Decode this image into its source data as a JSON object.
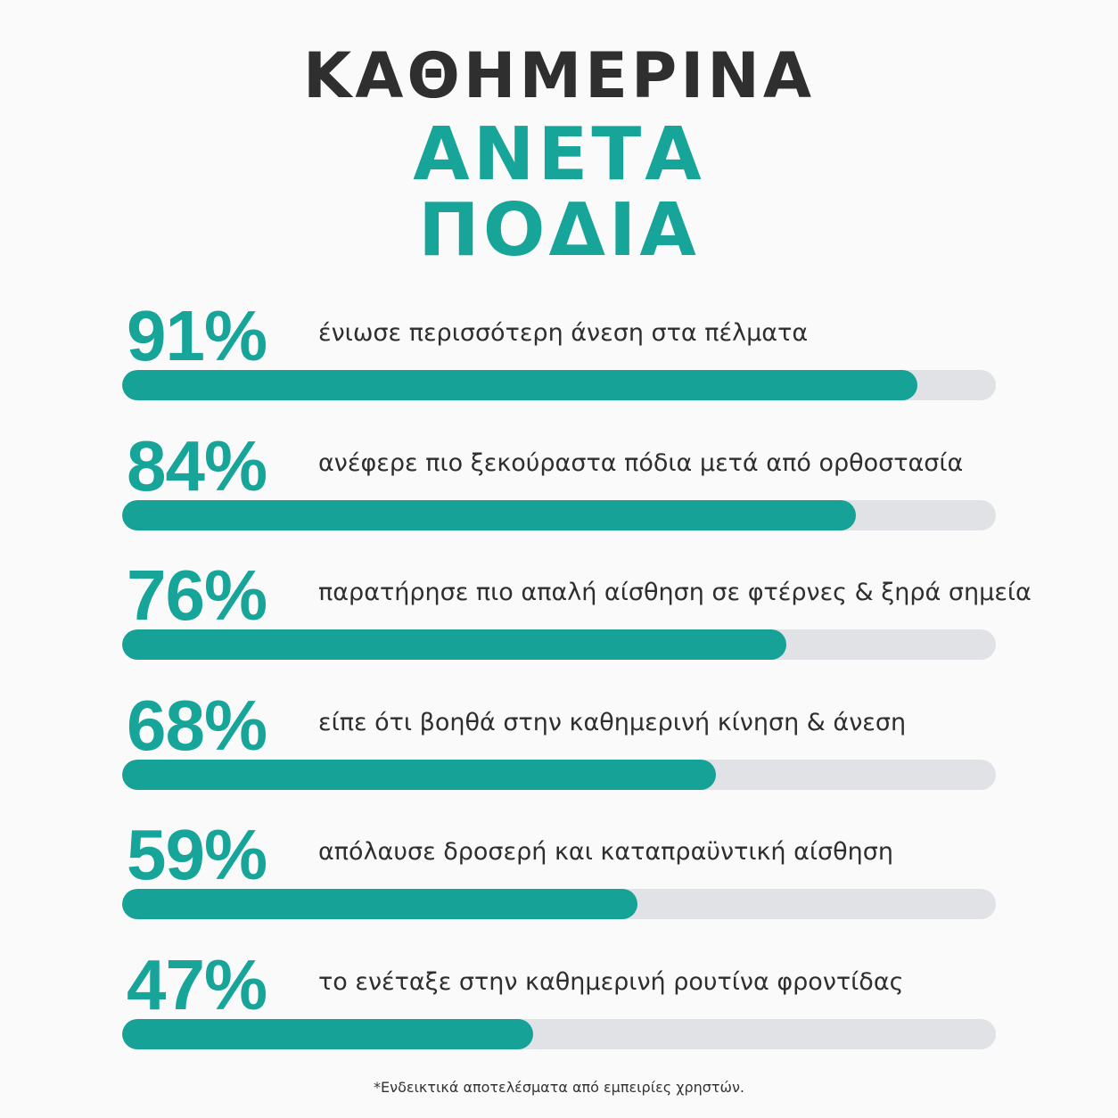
{
  "header": {
    "line1": "ΚΑΘΗΜΕΡΙΝΑ",
    "line2": "ΑΝΕΤΑ",
    "line3": "ΠΟΔΙΑ"
  },
  "colors": {
    "accent": "#17a59a",
    "title_dark": "#2f2f2f",
    "track": "#e1e2e5"
  },
  "chart_data": {
    "type": "bar",
    "orientation": "horizontal",
    "categories": [
      "ένιωσε περισσότερη άνεση στα πέλματα",
      "ανέφερε πιο ξεκούραστα πόδια μετά από ορθοστασία",
      "παρατήρησε πιο απαλή αίσθηση σε φτέρνες & ξηρά σημεία",
      "είπε ότι βοηθά στην καθημερινή κίνηση & άνεση",
      "απόλαυσε δροσερή και καταπραϋντική αίσθηση",
      "το ενέταξε στην καθημερινή ρουτίνα φροντίδας"
    ],
    "values": [
      91,
      84,
      76,
      68,
      59,
      47
    ],
    "value_labels": [
      "91%",
      "84%",
      "76%",
      "68%",
      "59%",
      "47%"
    ],
    "xlim": [
      0,
      100
    ],
    "grid": false
  },
  "footnote": "*Ενδεικτικά αποτελέσματα από εμπειρίες χρηστών."
}
